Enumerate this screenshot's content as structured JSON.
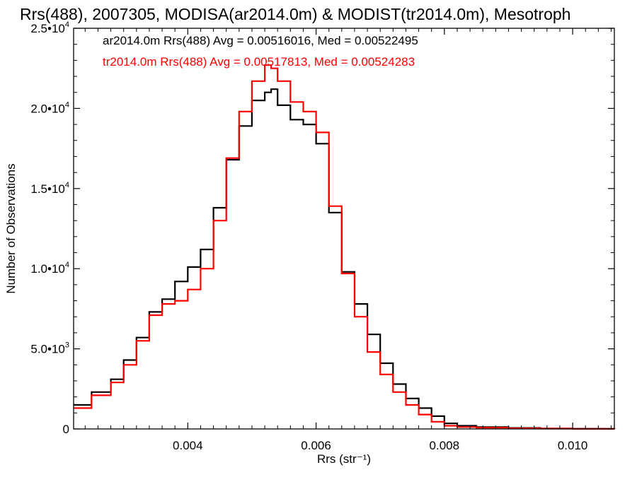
{
  "chart_data": {
    "type": "line",
    "title": "Rrs(488), 2007305, MODISA(ar2014.0m) & MODIST(tr2014.0m), Mesotroph",
    "xlabel": "Rrs (str⁻¹)",
    "ylabel": "Number of Observations",
    "xlim": [
      0.00222,
      0.01065
    ],
    "ylim": [
      0,
      25000
    ],
    "x_ticks": [
      {
        "value": 0.004,
        "label": "0.004"
      },
      {
        "value": 0.006,
        "label": "0.006"
      },
      {
        "value": 0.008,
        "label": "0.008"
      },
      {
        "value": 0.01,
        "label": "0.010"
      }
    ],
    "y_ticks": [
      {
        "value": 0,
        "base": "0",
        "exp": ""
      },
      {
        "value": 5000,
        "base": "5.0•10",
        "exp": "3"
      },
      {
        "value": 10000,
        "base": "1.0•10",
        "exp": "4"
      },
      {
        "value": 15000,
        "base": "1.5•10",
        "exp": "4"
      },
      {
        "value": 20000,
        "base": "2.0•10",
        "exp": "4"
      },
      {
        "value": 25000,
        "base": "2.5•10",
        "exp": "4"
      }
    ],
    "grid": false,
    "legend_position": "top-left",
    "series": [
      {
        "name": "ar2014.0m Rrs(488) Avg = 0.00516016, Med = 0.00522495",
        "color": "#000000",
        "x": [
          0.00222,
          0.0025,
          0.0028,
          0.003,
          0.0032,
          0.0034,
          0.0036,
          0.0038,
          0.004,
          0.0042,
          0.0044,
          0.0046,
          0.0048,
          0.005,
          0.0052,
          0.0053,
          0.0054,
          0.0056,
          0.0058,
          0.006,
          0.0062,
          0.0064,
          0.0066,
          0.0068,
          0.007,
          0.0072,
          0.0074,
          0.0076,
          0.0078,
          0.008,
          0.0082,
          0.0085,
          0.009,
          0.0095,
          0.01,
          0.01065
        ],
        "y": [
          1500,
          2300,
          3100,
          4300,
          5700,
          7300,
          8100,
          9200,
          10100,
          11200,
          13800,
          16800,
          18900,
          20500,
          21000,
          21200,
          20200,
          19300,
          19000,
          17800,
          13500,
          9800,
          7800,
          5900,
          4100,
          2800,
          1900,
          1300,
          800,
          350,
          200,
          120,
          60,
          30,
          15,
          5
        ]
      },
      {
        "name": "tr2014.0m Rrs(488) Avg = 0.00517813, Med = 0.00524283",
        "color": "#ff0000",
        "x": [
          0.00222,
          0.0025,
          0.0028,
          0.003,
          0.0032,
          0.0034,
          0.0036,
          0.0038,
          0.004,
          0.0042,
          0.0044,
          0.0046,
          0.0048,
          0.005,
          0.0052,
          0.0053,
          0.0054,
          0.0056,
          0.0058,
          0.006,
          0.0062,
          0.0064,
          0.0066,
          0.0068,
          0.007,
          0.0072,
          0.0074,
          0.0076,
          0.0078,
          0.008,
          0.0082,
          0.0085,
          0.009,
          0.0095,
          0.01,
          0.01065
        ],
        "y": [
          1300,
          2100,
          2900,
          4000,
          5500,
          7100,
          7800,
          8000,
          8700,
          10000,
          13000,
          16900,
          19800,
          21700,
          22700,
          22500,
          21700,
          20400,
          19800,
          18500,
          13900,
          9700,
          7000,
          4800,
          3400,
          2300,
          1500,
          900,
          450,
          200,
          120,
          80,
          40,
          20,
          10,
          5
        ]
      }
    ]
  }
}
